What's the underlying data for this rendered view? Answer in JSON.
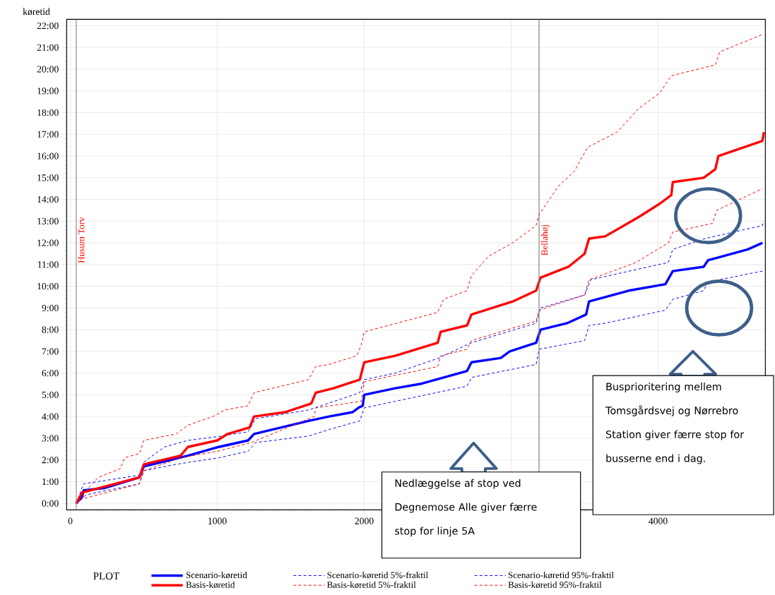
{
  "chart_data": {
    "type": "line",
    "ylabel": "køretid",
    "legend_title": "PLOT",
    "legend": "bottom",
    "grid": true,
    "xlim": [
      -25,
      4730
    ],
    "ylim": [
      -0.3,
      22.3
    ],
    "xticks": [
      0,
      1000,
      2000,
      {
        "value": 3000,
        "label": null
      },
      4000
    ],
    "yticks": [
      {
        "value": 0,
        "label": "0:00"
      },
      {
        "value": 1,
        "label": "1:00"
      },
      {
        "value": 2,
        "label": "2:00"
      },
      {
        "value": 3,
        "label": "3:00"
      },
      {
        "value": 4,
        "label": "4:00"
      },
      {
        "value": 5,
        "label": "5:00"
      },
      {
        "value": 6,
        "label": "6:00"
      },
      {
        "value": 7,
        "label": "7:00"
      },
      {
        "value": 8,
        "label": "8:00"
      },
      {
        "value": 9,
        "label": "9:00"
      },
      {
        "value": 10,
        "label": "10:00"
      },
      {
        "value": 11,
        "label": "11:00"
      },
      {
        "value": 12,
        "label": "12:00"
      },
      {
        "value": 13,
        "label": "13:00"
      },
      {
        "value": 14,
        "label": "14:00"
      },
      {
        "value": 15,
        "label": "15:00"
      },
      {
        "value": 16,
        "label": "16:00"
      },
      {
        "value": 17,
        "label": "17:00"
      },
      {
        "value": 18,
        "label": "18:00"
      },
      {
        "value": 19,
        "label": "19:00"
      },
      {
        "value": 20,
        "label": "20:00"
      },
      {
        "value": 21,
        "label": "21:00"
      },
      {
        "value": 22,
        "label": "22:00"
      }
    ],
    "series": [
      {
        "name": "Scenario-køretid",
        "color": "#0000ff",
        "line_style": "solid",
        "x": [
          40,
          80,
          90,
          230,
          470,
          500,
          620,
          800,
          1010,
          1210,
          1250,
          1620,
          1760,
          1920,
          1960,
          1990,
          2000,
          2210,
          2380,
          2700,
          2730,
          2930,
          2990,
          3170,
          3200,
          3380,
          3510,
          3530,
          3800,
          4050,
          4100,
          4310,
          4340,
          4610,
          4710
        ],
        "values": [
          0,
          0.3,
          0.6,
          0.7,
          1.2,
          1.7,
          1.9,
          2.2,
          2.6,
          2.9,
          3.2,
          3.8,
          4.0,
          4.2,
          4.4,
          4.5,
          5.0,
          5.3,
          5.5,
          6.1,
          6.5,
          6.7,
          7.0,
          7.4,
          8.0,
          8.3,
          8.7,
          9.3,
          9.8,
          10.1,
          10.7,
          10.9,
          11.2,
          11.7,
          12.0
        ]
      },
      {
        "name": "Scenario-køretid 5%-fraktil",
        "color": "#0000ff",
        "line_style": "dashed",
        "x": [
          40,
          110,
          470,
          500,
          720,
          1010,
          1210,
          1260,
          1620,
          1760,
          1970,
          2000,
          2210,
          2700,
          2730,
          3170,
          3190,
          3500,
          3530,
          3640,
          4050,
          4100,
          4310,
          4340,
          4710
        ],
        "values": [
          0,
          0.4,
          0.9,
          1.5,
          1.8,
          2.1,
          2.4,
          2.8,
          3.1,
          3.4,
          3.8,
          4.4,
          4.7,
          5.4,
          5.8,
          6.4,
          7.1,
          7.5,
          8.2,
          8.3,
          8.9,
          9.4,
          9.8,
          10.2,
          10.7
        ]
      },
      {
        "name": "Scenario-køretid 95%-fraktil",
        "color": "#0000ff",
        "line_style": "dashed",
        "x": [
          40,
          90,
          470,
          500,
          640,
          800,
          1030,
          1210,
          1260,
          1620,
          1970,
          2000,
          2210,
          2510,
          2730,
          3170,
          3200,
          3500,
          3540,
          4070,
          4100,
          4320,
          4710,
          4720
        ],
        "values": [
          0,
          0.9,
          1.3,
          1.9,
          2.6,
          2.9,
          3.1,
          3.3,
          3.9,
          4.3,
          5.1,
          5.7,
          6.0,
          6.7,
          7.4,
          8.3,
          9.0,
          9.6,
          10.3,
          11.1,
          11.7,
          12.2,
          12.8,
          13.0
        ]
      },
      {
        "name": "Basis-køretid",
        "color": "#ff0000",
        "line_style": "solid",
        "x": [
          40,
          80,
          470,
          500,
          750,
          800,
          1000,
          1070,
          1220,
          1250,
          1460,
          1640,
          1670,
          1790,
          1970,
          2000,
          2210,
          2500,
          2520,
          2700,
          2730,
          3010,
          3170,
          3200,
          3390,
          3500,
          3530,
          3640,
          3870,
          4010,
          4090,
          4100,
          4310,
          4390,
          4410,
          4710,
          4720
        ],
        "values": [
          0,
          0.5,
          1.2,
          1.8,
          2.2,
          2.6,
          2.9,
          3.2,
          3.5,
          4.0,
          4.2,
          4.6,
          5.1,
          5.3,
          5.7,
          6.5,
          6.8,
          7.4,
          7.9,
          8.2,
          8.7,
          9.3,
          9.8,
          10.4,
          10.9,
          11.5,
          12.2,
          12.3,
          13.2,
          13.8,
          14.2,
          14.8,
          15.0,
          15.4,
          16.0,
          16.7,
          17.1
        ]
      },
      {
        "name": "Basis-køretid 5%-fraktil",
        "color": "#ff0000",
        "line_style": "dashed",
        "x": [
          40,
          80,
          470,
          500,
          750,
          1000,
          1230,
          1660,
          1670,
          1980,
          2000,
          2210,
          2500,
          2520,
          2700,
          2730,
          3170,
          3190,
          3500,
          3530,
          3850,
          4070,
          4100,
          4370,
          4400,
          4710
        ],
        "values": [
          0,
          0.2,
          0.9,
          1.5,
          2.1,
          2.4,
          2.8,
          4.0,
          4.4,
          4.7,
          5.6,
          5.9,
          6.3,
          6.8,
          7.1,
          7.5,
          8.4,
          8.9,
          9.6,
          10.3,
          11.1,
          12.0,
          12.5,
          12.9,
          13.5,
          14.5
        ]
      },
      {
        "name": "Basis-køretid 95%-fraktil",
        "color": "#ff0000",
        "line_style": "dashed",
        "x": [
          40,
          80,
          190,
          340,
          370,
          470,
          500,
          720,
          800,
          970,
          1050,
          1210,
          1250,
          1620,
          1670,
          1760,
          1950,
          1980,
          2000,
          2500,
          2540,
          2700,
          2730,
          2850,
          3010,
          3170,
          3190,
          3320,
          3430,
          3520,
          3720,
          3870,
          4010,
          4090,
          4390,
          4420,
          4710
        ],
        "values": [
          0,
          0.4,
          1.2,
          1.6,
          2.1,
          2.3,
          2.9,
          3.2,
          3.6,
          4.0,
          4.3,
          4.5,
          5.1,
          5.7,
          6.3,
          6.4,
          6.8,
          7.3,
          7.9,
          8.8,
          9.4,
          9.8,
          10.5,
          11.4,
          12.0,
          12.8,
          13.3,
          14.6,
          15.3,
          16.4,
          17.1,
          18.2,
          18.9,
          19.7,
          20.2,
          20.8,
          21.6
        ]
      }
    ],
    "ref_lines": [
      {
        "axis": "x",
        "value": 40,
        "label": "Husum Torv",
        "color": "#808080"
      },
      {
        "axis": "x",
        "value": 3190,
        "label": "Bellahøj",
        "color": "#808080"
      }
    ],
    "annotations": [
      "Nedlæggelse af stop ved Degnemose Alle giver færre stop for linje 5A",
      "Busprioritering mellem Tomsgårdsvej og Nørrebro Station giver færre stop for busserne end i dag."
    ]
  }
}
